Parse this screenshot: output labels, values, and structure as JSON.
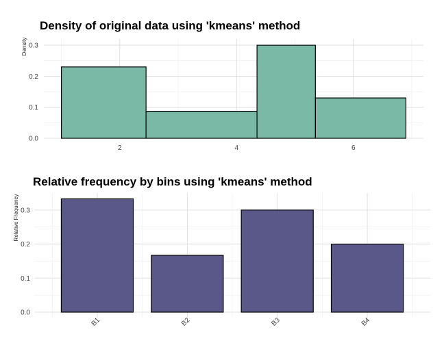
{
  "chart_data": [
    {
      "type": "bar",
      "subtype": "histogram",
      "title": "Density of original data using 'kmeans' method",
      "xlabel": "",
      "ylabel": "Density",
      "bins": [
        {
          "x0": 1.0,
          "x1": 2.45,
          "value": 0.23
        },
        {
          "x0": 2.45,
          "x1": 4.35,
          "value": 0.087
        },
        {
          "x0": 4.35,
          "x1": 5.35,
          "value": 0.3
        },
        {
          "x0": 5.35,
          "x1": 6.9,
          "value": 0.13
        }
      ],
      "xlim": [
        0.7,
        7.2
      ],
      "ylim": [
        0,
        0.32
      ],
      "xticks": [
        2,
        4,
        6
      ],
      "xtick_labels": [
        "2",
        "4",
        "6"
      ],
      "yticks": [
        0,
        0.1,
        0.2,
        0.3
      ],
      "ytick_labels": [
        "0.0",
        "0.1",
        "0.2",
        "0.3"
      ],
      "fill_color": "#7ab9a6",
      "edge_color": "#000000",
      "grid": true
    },
    {
      "type": "bar",
      "title": "Relative frequency by bins using 'kmeans' method",
      "xlabel": "",
      "ylabel": "Relative Frequency",
      "categories": [
        "B1",
        "B2",
        "B3",
        "B4"
      ],
      "values": [
        0.333,
        0.167,
        0.3,
        0.2
      ],
      "ylim": [
        0,
        0.35
      ],
      "yticks": [
        0,
        0.1,
        0.2,
        0.3
      ],
      "ytick_labels": [
        "0.0",
        "0.1",
        "0.2",
        "0.3"
      ],
      "fill_color": "#5a5889",
      "edge_color": "#000000",
      "grid": true
    }
  ]
}
